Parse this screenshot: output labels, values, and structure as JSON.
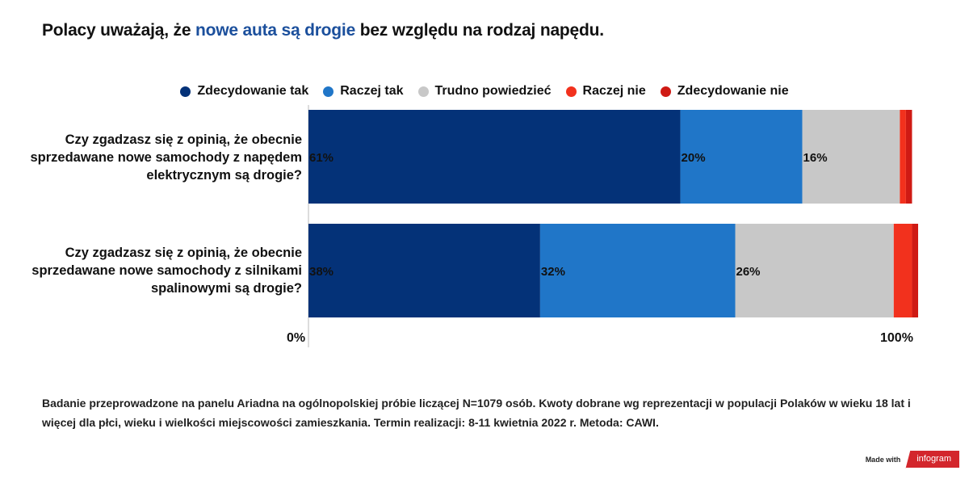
{
  "title": {
    "prefix": "Polacy uważają, że ",
    "highlight": "nowe auta są drogie",
    "suffix": " bez względu na rodzaj napędu."
  },
  "colors": {
    "title_highlight": "#1b4f9c",
    "segments": [
      "#043278",
      "#2076c8",
      "#c8c8c8",
      "#f2311d",
      "#cf1a14"
    ]
  },
  "footnote": "Badanie przeprowadzone na panelu Ariadna na ogólnopolskiej próbie liczącej N=1079 osób. Kwoty dobrane wg reprezentacji w populacji Polaków w wieku 18 lat i więcej dla płci, wieku i wielkości miejscowości zamieszkania. Termin realizacji:  8-11 kwietnia 2022 r. Metoda: CAWI.",
  "brand": {
    "made_with": "Made with",
    "logo": "infogram"
  },
  "chart_data": {
    "type": "bar",
    "orientation": "horizontal",
    "stacked": true,
    "categories": [
      "Czy zgadzasz się z opinią, że obecnie sprzedawane nowe samochody z napędem elektrycznym są drogie?",
      "Czy zgadzasz się z opinią, że obecnie sprzedawane nowe samochody z silnikami spalinowymi są drogie?"
    ],
    "series": [
      {
        "name": "Zdecydowanie tak",
        "color": "#043278",
        "values": [
          61,
          38
        ],
        "labels": [
          "61%",
          "38%"
        ]
      },
      {
        "name": "Raczej tak",
        "color": "#2076c8",
        "values": [
          20,
          32
        ],
        "labels": [
          "20%",
          "32%"
        ]
      },
      {
        "name": "Trudno powiedzieć",
        "color": "#c8c8c8",
        "values": [
          16,
          26
        ],
        "labels": [
          "16%",
          "26%"
        ]
      },
      {
        "name": "Raczej nie",
        "color": "#f2311d",
        "values": [
          1,
          3
        ],
        "labels": [
          "",
          ""
        ]
      },
      {
        "name": "Zdecydowanie nie",
        "color": "#cf1a14",
        "values": [
          1,
          1
        ],
        "labels": [
          "",
          ""
        ]
      }
    ],
    "xlim": [
      0,
      100
    ],
    "x_ticks": [
      "0%",
      "100%"
    ],
    "legend": "top-center",
    "grid": false
  }
}
